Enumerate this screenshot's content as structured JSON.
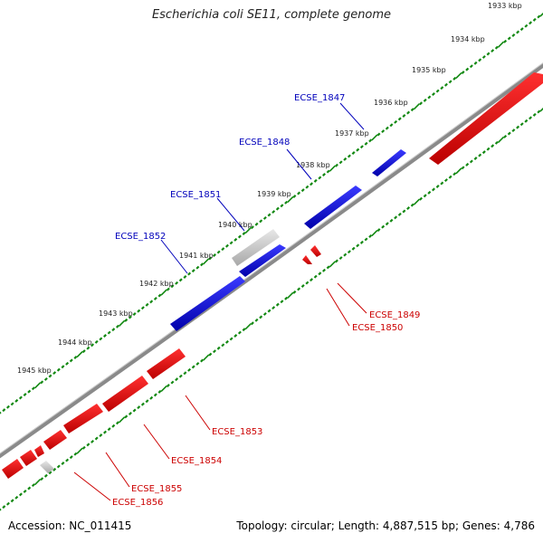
{
  "title": "Escherichia coli SE11, complete genome",
  "footer": {
    "accession": "Accession: NC_011415",
    "summary": "Topology: circular; Length: 4,887,515 bp; Genes: 4,786"
  },
  "colors": {
    "forward_gene": "#0000dd",
    "reverse_gene": "#ee0000",
    "pseudo_gene": "#c0c0c0",
    "backbone": "#808080",
    "tick": "#118811",
    "forward_label": "#0000bb",
    "reverse_label": "#cc0000"
  },
  "kbp_ticks": [
    "1933 kbp",
    "1934 kbp",
    "1935 kbp",
    "1936 kbp",
    "1937 kbp",
    "1938 kbp",
    "1939 kbp",
    "1940 kbp",
    "1941 kbp",
    "1942 kbp",
    "1943 kbp",
    "1944 kbp",
    "1945 kbp"
  ],
  "genes_forward": [
    "ECSE_1847",
    "ECSE_1848",
    "ECSE_1851",
    "ECSE_1852"
  ],
  "genes_reverse": [
    "ECSE_1849",
    "ECSE_1850",
    "ECSE_1853",
    "ECSE_1854",
    "ECSE_1855",
    "ECSE_1856"
  ]
}
